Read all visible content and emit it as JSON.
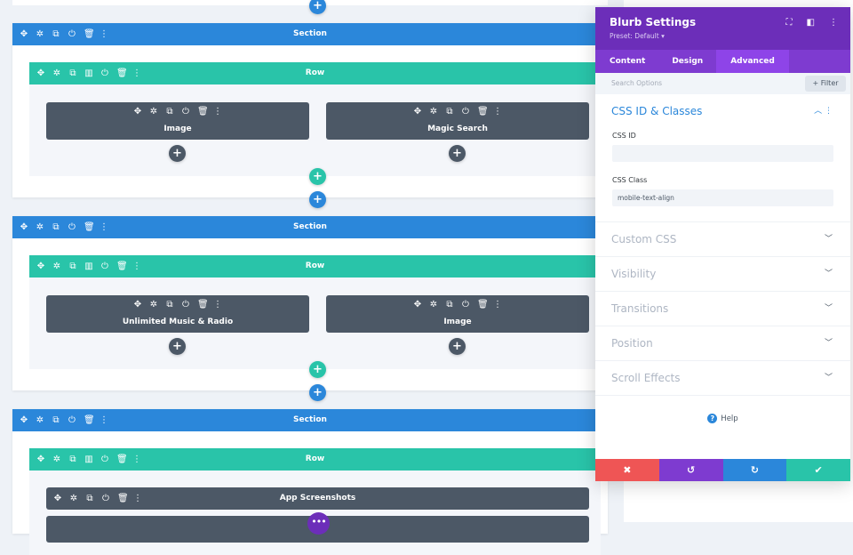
{
  "builder": {
    "section_label": "Section",
    "row_label": "Row",
    "section_icons": [
      "move-icon",
      "gear-icon",
      "duplicate-icon",
      "power-icon",
      "trash-icon",
      "more-icon"
    ],
    "row_icons": [
      "move-icon",
      "gear-icon",
      "duplicate-icon",
      "columns-icon",
      "power-icon",
      "trash-icon",
      "more-icon"
    ],
    "sections": [
      {
        "modules": [
          "Image",
          "Magic Search"
        ]
      },
      {
        "modules": [
          "Unlimited Music & Radio",
          "Image"
        ]
      },
      {
        "modules": [
          "App Screenshots",
          ""
        ]
      }
    ]
  },
  "panel": {
    "title": "Blurb Settings",
    "preset": "Preset: Default ▾",
    "tabs": [
      {
        "label": "Content"
      },
      {
        "label": "Design"
      },
      {
        "label": "Advanced",
        "active": true
      }
    ],
    "search_placeholder": "Search Options",
    "filter_label": "+ Filter",
    "open_group": {
      "title": "CSS ID & Classes",
      "css_id_label": "CSS ID",
      "css_id_value": "",
      "css_class_label": "CSS Class",
      "css_class_value": "mobile-text-align"
    },
    "groups": [
      {
        "title": "Custom CSS"
      },
      {
        "title": "Visibility"
      },
      {
        "title": "Transitions"
      },
      {
        "title": "Position"
      },
      {
        "title": "Scroll Effects"
      }
    ],
    "help_label": "Help"
  },
  "colors": {
    "section": "#2b87da",
    "row": "#29c4a9",
    "module": "#4c5866",
    "panel_header": "#6c2eb9",
    "cancel": "#ef5555",
    "undo": "#7e3bd0",
    "redo": "#2b87da",
    "save": "#29c4a9"
  }
}
